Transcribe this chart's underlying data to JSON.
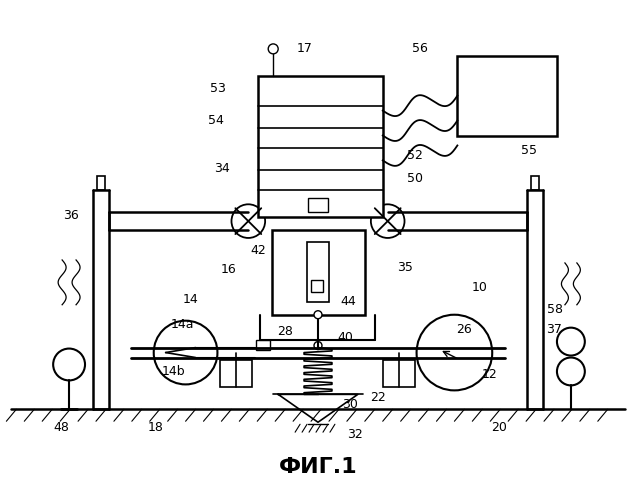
{
  "title": "ФИГ.1",
  "title_fontsize": 16,
  "background_color": "#ffffff",
  "line_color": "#000000",
  "lw_main": 1.4,
  "lw_thin": 0.9
}
